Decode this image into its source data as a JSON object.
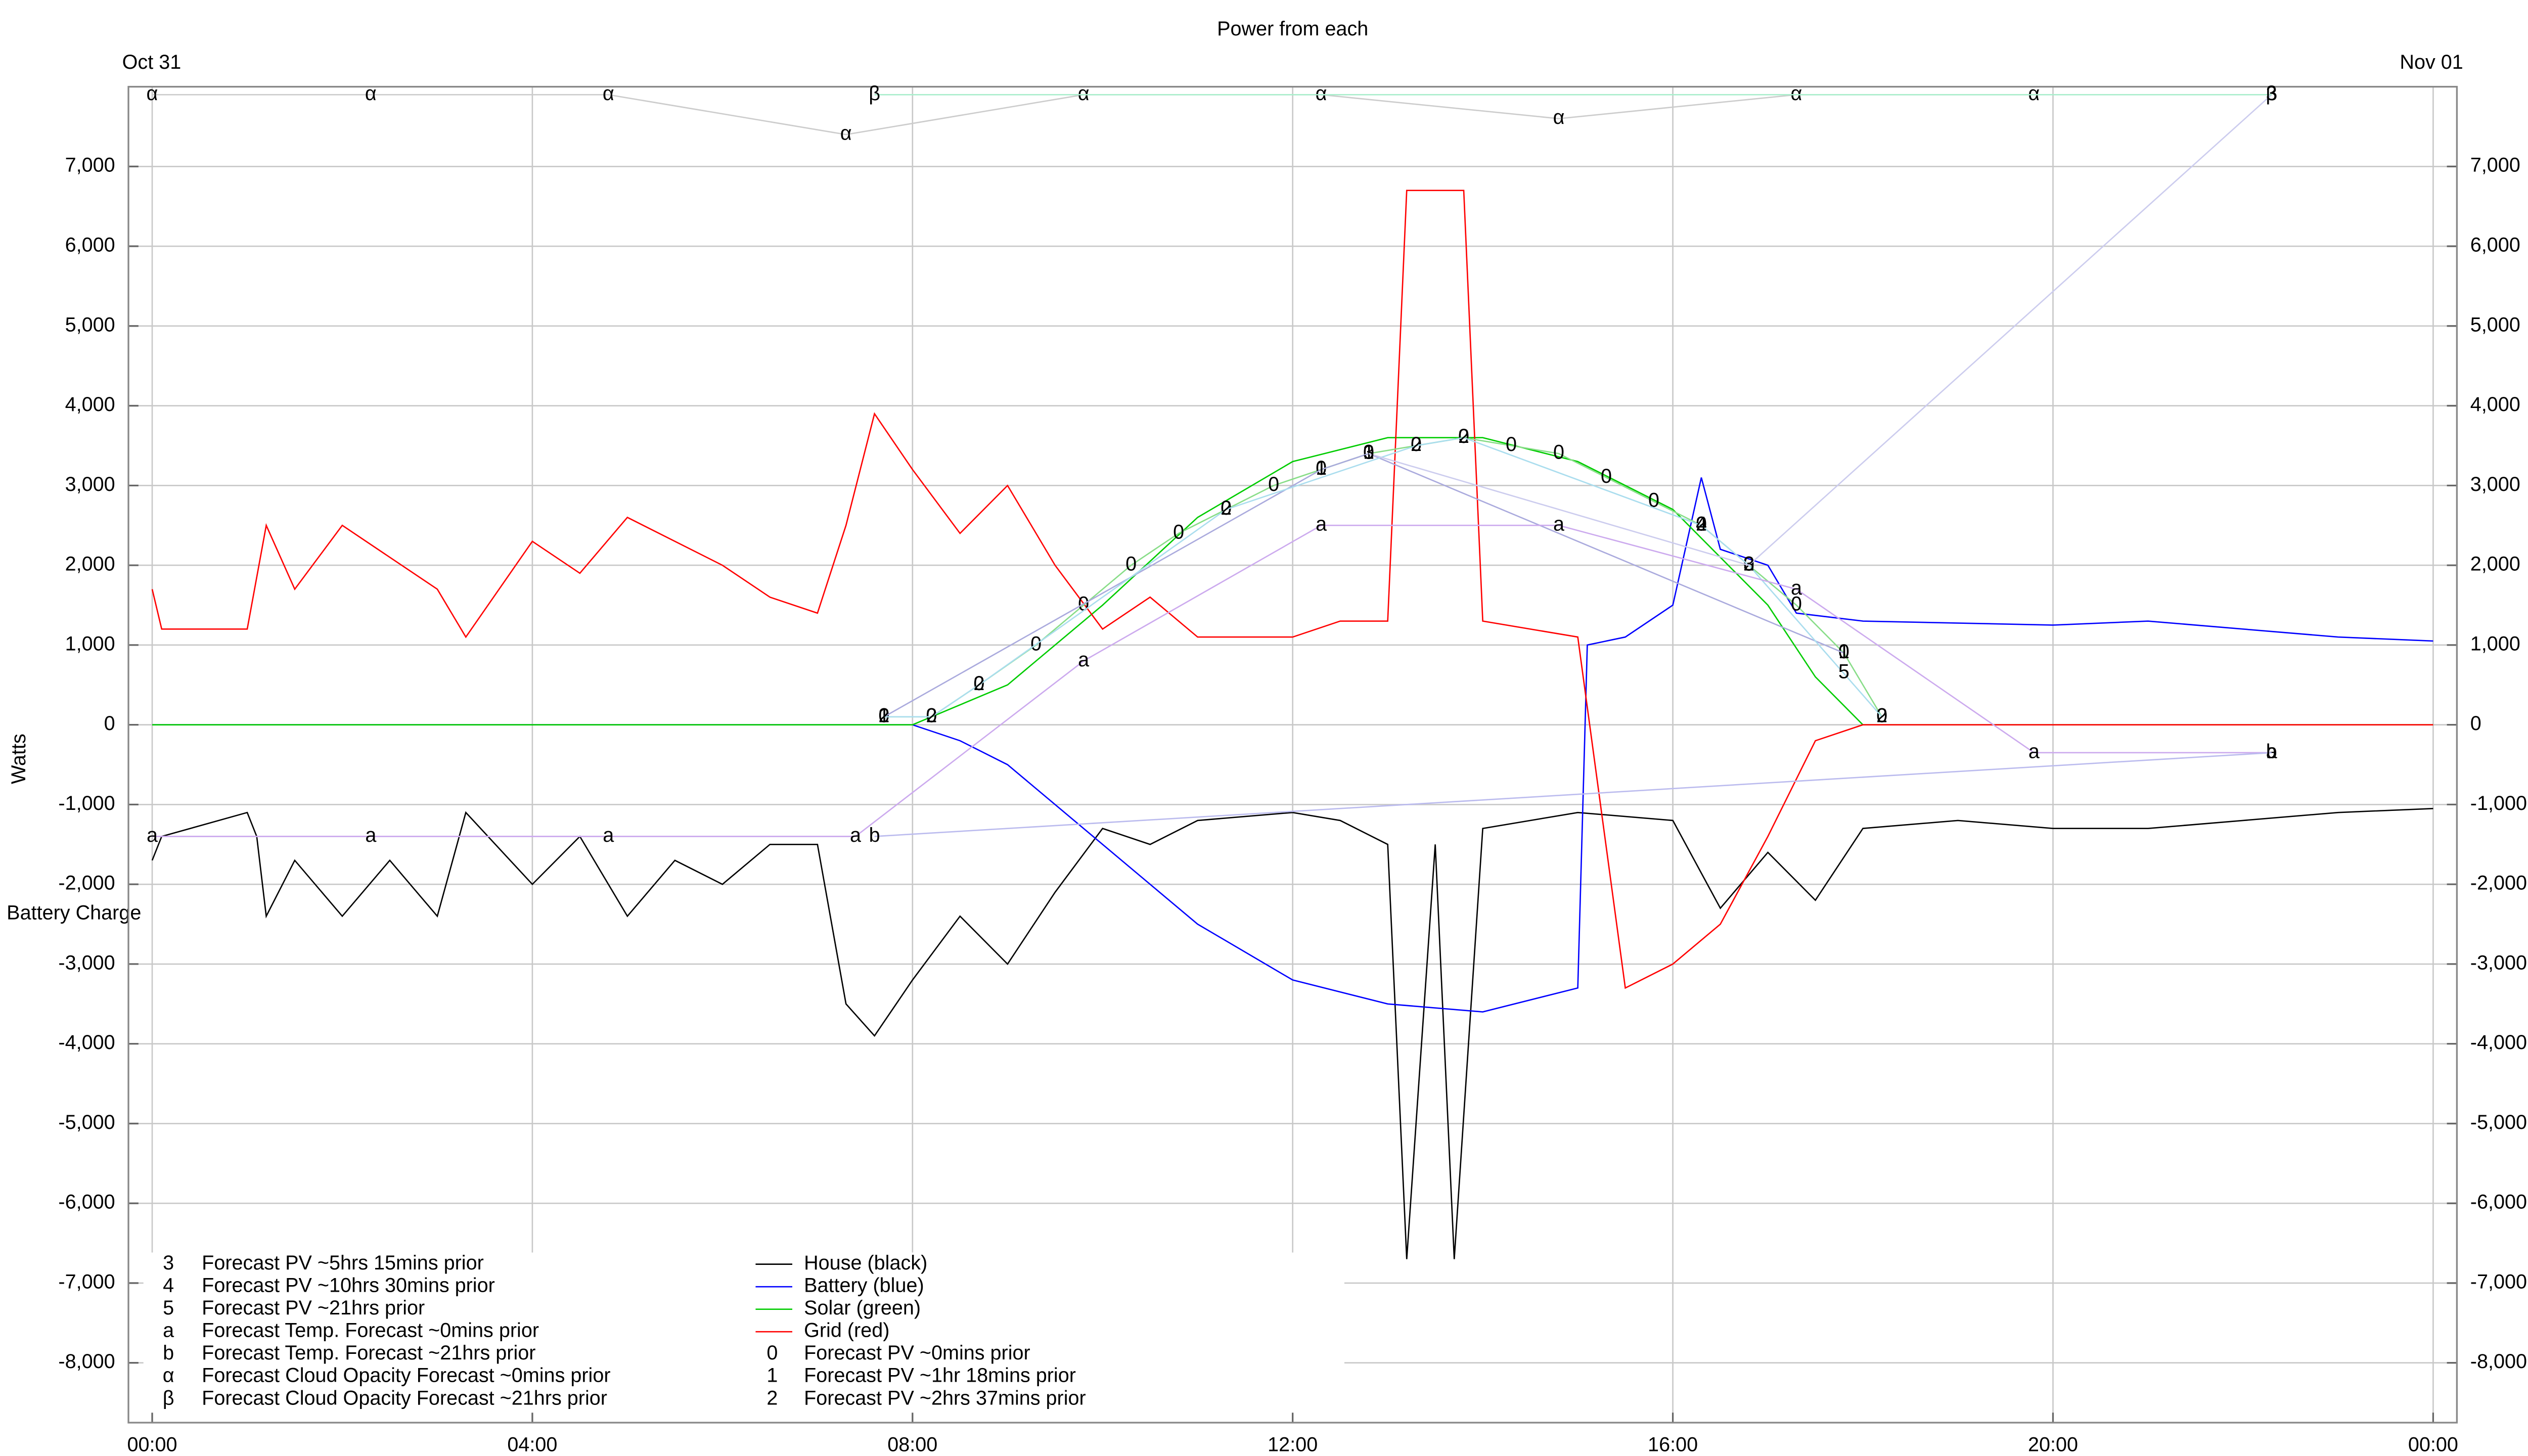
{
  "chart_data": {
    "type": "line",
    "title": "Power from each",
    "y_label": "Watts",
    "annotation": "Battery Charge",
    "date_labels": [
      {
        "value": 0,
        "label": "Oct 31"
      },
      {
        "value": 24,
        "label": "Nov 01"
      }
    ],
    "xlim": [
      -0.25,
      24.25
    ],
    "xticks": [
      {
        "value": 0,
        "label": "00:00"
      },
      {
        "value": 4,
        "label": "04:00"
      },
      {
        "value": 8,
        "label": "08:00"
      },
      {
        "value": 12,
        "label": "12:00"
      },
      {
        "value": 16,
        "label": "16:00"
      },
      {
        "value": 20,
        "label": "20:00"
      },
      {
        "value": 24,
        "label": "00:00"
      }
    ],
    "ylim": [
      -8750,
      8000
    ],
    "yticks": [
      {
        "value": -8000,
        "label": "-8,000"
      },
      {
        "value": -7000,
        "label": "-7,000"
      },
      {
        "value": -6000,
        "label": "-6,000"
      },
      {
        "value": -5000,
        "label": "-5,000"
      },
      {
        "value": -4000,
        "label": "-4,000"
      },
      {
        "value": -3000,
        "label": "-3,000"
      },
      {
        "value": -2000,
        "label": "-2,000"
      },
      {
        "value": -1000,
        "label": "-1,000"
      },
      0,
      {
        "value": 1000,
        "label": "1,000"
      },
      {
        "value": 2000,
        "label": "2,000"
      },
      {
        "value": 3000,
        "label": "3,000"
      },
      {
        "value": 4000,
        "label": "4,000"
      },
      {
        "value": 5000,
        "label": "5,000"
      },
      {
        "value": 6000,
        "label": "6,000"
      },
      {
        "value": 7000,
        "label": "7,000"
      }
    ],
    "grid": true,
    "series": [
      {
        "name": "House (black)",
        "color": "#000000",
        "x": [
          0,
          0.1,
          1,
          1.1,
          1.2,
          1.5,
          2,
          2.5,
          3,
          3.3,
          4,
          4.5,
          5,
          5.5,
          6,
          6.5,
          7,
          7.3,
          7.6,
          8,
          8.5,
          9,
          9.5,
          10,
          10.5,
          11,
          12,
          12.5,
          13,
          13.2,
          13.5,
          13.7,
          14,
          15,
          16,
          16.5,
          17,
          17.5,
          18,
          19,
          20,
          21,
          22,
          23,
          24
        ],
        "values": [
          -1700,
          -1400,
          -1100,
          -1400,
          -2400,
          -1700,
          -2400,
          -1700,
          -2400,
          -1100,
          -2000,
          -1400,
          -2400,
          -1700,
          -2000,
          -1500,
          -1500,
          -3500,
          -3900,
          -3200,
          -2400,
          -3000,
          -2100,
          -1300,
          -1500,
          -1200,
          -1100,
          -1200,
          -1500,
          -6700,
          -1500,
          -6700,
          -1300,
          -1100,
          -1200,
          -2300,
          -1600,
          -2200,
          -1300,
          -1200,
          -1300,
          -1300,
          -1200,
          -1100,
          -1050
        ]
      },
      {
        "name": "Battery (blue)",
        "color": "#0000ff",
        "x": [
          0,
          8,
          8.5,
          9,
          10,
          11,
          12,
          13,
          14,
          15,
          15.1,
          15.5,
          16,
          16.3,
          16.5,
          17,
          17.3,
          18,
          20,
          21,
          22,
          23,
          24
        ],
        "values": [
          0,
          0,
          -200,
          -500,
          -1500,
          -2500,
          -3200,
          -3500,
          -3600,
          -3300,
          1000,
          1100,
          1500,
          3100,
          2200,
          2000,
          1400,
          1300,
          1250,
          1300,
          1200,
          1100,
          1050
        ]
      },
      {
        "name": "Solar (green)",
        "color": "#00cc00",
        "x": [
          0,
          8,
          9,
          10,
          11,
          12,
          13,
          14,
          15,
          16,
          17,
          17.5,
          18,
          24
        ],
        "values": [
          0,
          0,
          500,
          1500,
          2600,
          3300,
          3600,
          3600,
          3300,
          2700,
          1500,
          600,
          0,
          0
        ]
      },
      {
        "name": "Grid (red)",
        "color": "#ff0000",
        "x": [
          0,
          0.1,
          1,
          1.2,
          1.5,
          2,
          3,
          3.3,
          4,
          4.5,
          5,
          6,
          6.5,
          7,
          7.3,
          7.6,
          8,
          8.5,
          9,
          9.5,
          10,
          10.5,
          11,
          12,
          12.5,
          13,
          13.2,
          13.8,
          14,
          15,
          15.5,
          16,
          16.5,
          17,
          17.5,
          18,
          24
        ],
        "values": [
          1700,
          1200,
          1200,
          2500,
          1700,
          2500,
          1700,
          1100,
          2300,
          1900,
          2600,
          2000,
          1600,
          1400,
          2500,
          3900,
          3200,
          2400,
          3000,
          2000,
          1200,
          1600,
          1100,
          1100,
          1300,
          1300,
          6700,
          6700,
          1300,
          1100,
          -3300,
          -3000,
          -2500,
          -1400,
          -200,
          0,
          0
        ]
      },
      {
        "name": "Forecast PV ~0mins prior",
        "symbol": "0",
        "color": "#88dd88",
        "x": [
          7.7,
          8.2,
          8.7,
          9.3,
          9.8,
          10.3,
          10.8,
          11.3,
          11.8,
          12.3,
          12.8,
          13.3,
          13.8,
          14.3,
          14.8,
          15.3,
          15.8,
          16.3,
          16.8,
          17.3,
          17.8,
          18.2
        ],
        "values": [
          100,
          100,
          500,
          1000,
          1500,
          2000,
          2400,
          2700,
          3000,
          3200,
          3400,
          3500,
          3600,
          3500,
          3400,
          3100,
          2800,
          2500,
          2000,
          1500,
          900,
          100
        ]
      },
      {
        "name": "Forecast PV ~1hr 18mins prior",
        "symbol": "1",
        "color": "#aaaadd",
        "x": [
          7.7,
          12.3,
          12.8,
          17.8
        ],
        "values": [
          100,
          3200,
          3400,
          900
        ]
      },
      {
        "name": "Forecast PV ~2hrs 37mins prior",
        "symbol": "2",
        "color": "#aaddee",
        "x": [
          7.7,
          8.2,
          8.7,
          11.3,
          13.3,
          13.8,
          16.3,
          16.8,
          18.2
        ],
        "values": [
          100,
          100,
          500,
          2700,
          3500,
          3600,
          2500,
          2000,
          100
        ]
      },
      {
        "name": "Forecast PV ~5hrs 15mins prior",
        "symbol": "3",
        "color": "#ccccee",
        "x": [
          12.8,
          16.8,
          22.3
        ],
        "values": [
          3400,
          2000,
          7900
        ]
      },
      {
        "name": "Forecast PV ~10hrs 30mins prior",
        "symbol": "4",
        "color": "#ccddcc",
        "x": [
          16.3
        ],
        "values": [
          2500
        ]
      },
      {
        "name": "Forecast PV ~21hrs prior",
        "symbol": "5",
        "color": "#ddccdd",
        "x": [
          17.8
        ],
        "values": [
          650
        ]
      },
      {
        "name": "Forecast Temp. Forecast ~0mins prior",
        "symbol": "a",
        "color": "#ccaaee",
        "x": [
          0,
          2.3,
          4.8,
          7.4,
          9.8,
          12.3,
          14.8,
          17.3,
          19.8,
          22.3
        ],
        "values": [
          -1400,
          -1400,
          -1400,
          -1400,
          800,
          2500,
          2500,
          1700,
          -350,
          -350
        ]
      },
      {
        "name": "Forecast Temp. Forecast ~21hrs prior",
        "symbol": "b",
        "color": "#bbbbee",
        "x": [
          7.6,
          22.3
        ],
        "values": [
          -1400,
          -350
        ]
      },
      {
        "name": "Forecast Cloud Opacity Forecast ~0mins prior",
        "symbol": "α",
        "color": "#cccccc",
        "x": [
          0,
          2.3,
          4.8,
          7.3,
          9.8,
          12.3,
          14.8,
          17.3,
          19.8
        ],
        "values": [
          7900,
          7900,
          7900,
          7400,
          7900,
          7900,
          7600,
          7900,
          7900
        ]
      },
      {
        "name": "Forecast Cloud Opacity Forecast ~21hrs prior",
        "symbol": "β",
        "color": "#aaeecc",
        "x": [
          7.6,
          22.3
        ],
        "values": [
          7900,
          7900
        ]
      }
    ]
  }
}
